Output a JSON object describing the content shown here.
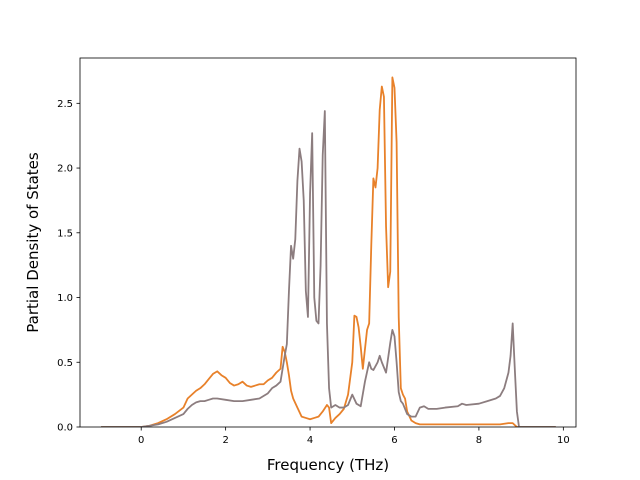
{
  "chart_data": {
    "type": "line",
    "title": "",
    "xlabel": "Frequency (THz)",
    "ylabel": "Partial Density of States",
    "xlim": [
      -1.45,
      10.3
    ],
    "ylim": [
      0.0,
      2.85
    ],
    "xticks": [
      0,
      2,
      4,
      6,
      8,
      10
    ],
    "xtick_labels": [
      "0",
      "2",
      "4",
      "6",
      "8",
      "10"
    ],
    "yticks": [
      0.0,
      0.5,
      1.0,
      1.5,
      2.0,
      2.5
    ],
    "ytick_labels": [
      "0.0",
      "0.5",
      "1.0",
      "1.5",
      "2.0",
      "2.5"
    ],
    "grid": false,
    "series": [
      {
        "color": "#e8812a",
        "x": [
          -0.95,
          0.0,
          0.2,
          0.4,
          0.6,
          0.8,
          1.0,
          1.1,
          1.2,
          1.3,
          1.4,
          1.5,
          1.6,
          1.7,
          1.8,
          1.9,
          2.0,
          2.1,
          2.2,
          2.3,
          2.4,
          2.5,
          2.6,
          2.7,
          2.8,
          2.9,
          3.0,
          3.1,
          3.2,
          3.3,
          3.35,
          3.4,
          3.45,
          3.5,
          3.55,
          3.6,
          3.7,
          3.8,
          3.9,
          4.0,
          4.1,
          4.2,
          4.3,
          4.4,
          4.45,
          4.5,
          4.6,
          4.7,
          4.8,
          4.9,
          5.0,
          5.05,
          5.1,
          5.15,
          5.2,
          5.25,
          5.3,
          5.35,
          5.4,
          5.45,
          5.5,
          5.55,
          5.6,
          5.65,
          5.7,
          5.75,
          5.8,
          5.85,
          5.9,
          5.95,
          6.0,
          6.05,
          6.1,
          6.15,
          6.2,
          6.25,
          6.3,
          6.4,
          6.5,
          6.6,
          6.7,
          6.8,
          7.0,
          7.5,
          8.0,
          8.5,
          8.7,
          8.8,
          8.9,
          9.2,
          9.82
        ],
        "y": [
          0.0,
          0.0,
          0.01,
          0.03,
          0.06,
          0.1,
          0.15,
          0.22,
          0.25,
          0.28,
          0.3,
          0.33,
          0.37,
          0.41,
          0.43,
          0.4,
          0.38,
          0.34,
          0.32,
          0.33,
          0.35,
          0.32,
          0.31,
          0.32,
          0.33,
          0.33,
          0.36,
          0.38,
          0.42,
          0.45,
          0.62,
          0.58,
          0.5,
          0.4,
          0.28,
          0.22,
          0.15,
          0.08,
          0.07,
          0.06,
          0.07,
          0.08,
          0.12,
          0.17,
          0.15,
          0.03,
          0.07,
          0.1,
          0.14,
          0.25,
          0.5,
          0.86,
          0.85,
          0.77,
          0.62,
          0.45,
          0.6,
          0.75,
          0.8,
          1.4,
          1.92,
          1.85,
          2.0,
          2.45,
          2.63,
          2.55,
          1.55,
          1.08,
          1.2,
          2.7,
          2.62,
          2.2,
          0.85,
          0.3,
          0.25,
          0.22,
          0.12,
          0.05,
          0.03,
          0.02,
          0.02,
          0.02,
          0.02,
          0.02,
          0.02,
          0.02,
          0.03,
          0.03,
          0.0,
          0.0,
          0.0
        ]
      },
      {
        "color": "#8c7d7f",
        "x": [
          -0.95,
          0.0,
          0.2,
          0.4,
          0.6,
          0.8,
          1.0,
          1.1,
          1.2,
          1.3,
          1.4,
          1.5,
          1.6,
          1.7,
          1.8,
          2.0,
          2.2,
          2.4,
          2.6,
          2.8,
          3.0,
          3.1,
          3.2,
          3.3,
          3.4,
          3.45,
          3.5,
          3.55,
          3.6,
          3.65,
          3.7,
          3.75,
          3.8,
          3.85,
          3.9,
          3.95,
          4.0,
          4.05,
          4.1,
          4.15,
          4.2,
          4.25,
          4.3,
          4.35,
          4.4,
          4.45,
          4.5,
          4.6,
          4.7,
          4.8,
          4.9,
          5.0,
          5.1,
          5.2,
          5.3,
          5.4,
          5.45,
          5.5,
          5.6,
          5.65,
          5.7,
          5.8,
          5.9,
          5.95,
          6.0,
          6.05,
          6.1,
          6.15,
          6.2,
          6.3,
          6.4,
          6.5,
          6.6,
          6.7,
          6.8,
          7.0,
          7.2,
          7.5,
          7.6,
          7.7,
          8.0,
          8.2,
          8.4,
          8.5,
          8.6,
          8.7,
          8.75,
          8.8,
          8.85,
          8.9,
          8.95,
          9.82
        ],
        "y": [
          0.0,
          0.0,
          0.01,
          0.02,
          0.04,
          0.07,
          0.1,
          0.14,
          0.17,
          0.19,
          0.2,
          0.2,
          0.21,
          0.22,
          0.22,
          0.21,
          0.2,
          0.2,
          0.21,
          0.22,
          0.26,
          0.3,
          0.32,
          0.35,
          0.55,
          0.64,
          1.05,
          1.4,
          1.3,
          1.45,
          1.9,
          2.15,
          2.05,
          1.75,
          1.05,
          0.85,
          1.8,
          2.27,
          1.0,
          0.82,
          0.8,
          1.25,
          2.1,
          2.44,
          0.8,
          0.3,
          0.15,
          0.17,
          0.15,
          0.15,
          0.17,
          0.25,
          0.18,
          0.16,
          0.35,
          0.5,
          0.45,
          0.44,
          0.5,
          0.55,
          0.5,
          0.42,
          0.65,
          0.75,
          0.7,
          0.5,
          0.27,
          0.2,
          0.18,
          0.1,
          0.08,
          0.08,
          0.15,
          0.16,
          0.14,
          0.14,
          0.15,
          0.16,
          0.18,
          0.17,
          0.18,
          0.2,
          0.22,
          0.24,
          0.3,
          0.42,
          0.55,
          0.8,
          0.45,
          0.12,
          0.0,
          0.0
        ]
      }
    ]
  }
}
